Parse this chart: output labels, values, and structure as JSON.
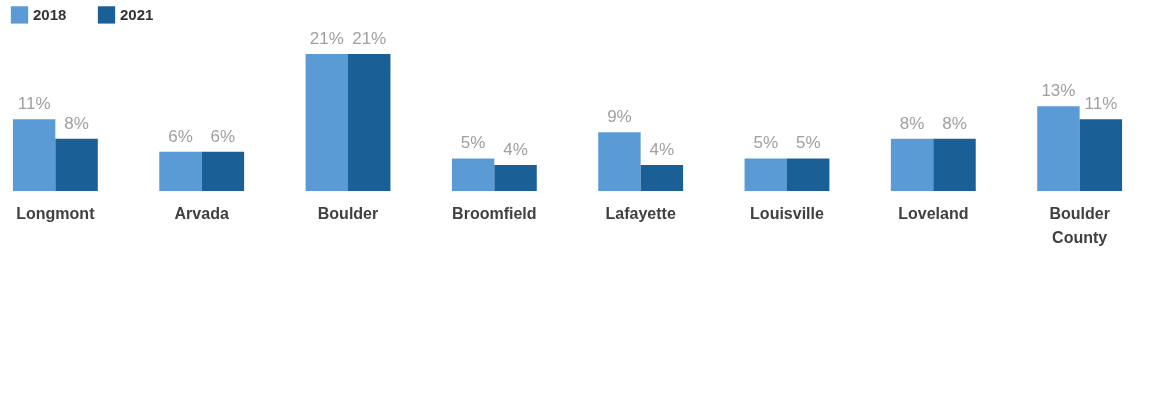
{
  "chart_data": {
    "type": "bar",
    "categories": [
      "Longmont",
      "Arvada",
      "Boulder",
      "Broomfield",
      "Lafayette",
      "Louisville",
      "Loveland",
      "Boulder County"
    ],
    "series": [
      {
        "name": "2018",
        "color": "#5b9bd5",
        "values": [
          11,
          6,
          21,
          5,
          9,
          5,
          8,
          13
        ],
        "value_labels": [
          "11%",
          "6%",
          "21%",
          "5%",
          "9%",
          "5%",
          "8%",
          "13%"
        ]
      },
      {
        "name": "2021",
        "color": "#1a6096",
        "values": [
          8,
          6,
          21,
          4,
          4,
          5,
          8,
          11
        ],
        "value_labels": [
          "8%",
          "6%",
          "21%",
          "4%",
          "4%",
          "5%",
          "8%",
          "11%"
        ]
      }
    ],
    "legend": "top left",
    "grid": false
  }
}
